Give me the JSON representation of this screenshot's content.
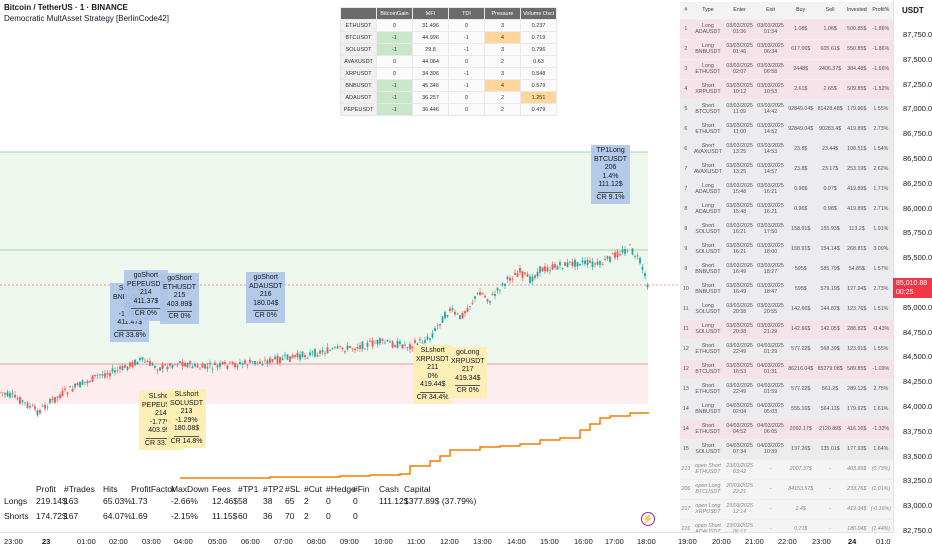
{
  "header": {
    "title": "Bitcoin / TetherUS · 1 · BINANCE",
    "indicator": "Democratic MultAsset Strategy [BerlinCode42]"
  },
  "price_scale": {
    "currency": "USDT",
    "labels": [
      "87,750.00",
      "87,500.00",
      "87,250.00",
      "87,000.00",
      "86,750.00",
      "86,500.00",
      "86,250.00",
      "86,000.00",
      "85,750.00",
      "85,500.00",
      "85,250.00",
      "85,000.00",
      "84,750.00",
      "84,500.00",
      "84,250.00",
      "84,000.00",
      "83,750.00",
      "83,500.00",
      "83,250.00",
      "83,000.00",
      "82,750.00"
    ],
    "current_price": "85,010.88",
    "countdown": "00:25"
  },
  "time_scale": {
    "labels": [
      "23:00",
      "23",
      "01:00",
      "02:00",
      "03:00",
      "04:00",
      "05:00",
      "06:00",
      "07:00",
      "08:00",
      "09:00",
      "10:00",
      "11:00",
      "12:00",
      "13:00",
      "14:00",
      "15:00",
      "16:00",
      "17:00",
      "18:00",
      "19:00",
      "20:00",
      "21:00",
      "22:00",
      "23:00",
      "24",
      "01:0"
    ]
  },
  "signal_table": {
    "headers": [
      "",
      "BitcoinGain",
      "MFI",
      "TDI",
      "Pressure",
      "Volume Osci"
    ],
    "rows": [
      [
        "ETHUSDT",
        "0",
        "31.496",
        "0",
        "3",
        "0.237"
      ],
      [
        "BTCUSDT",
        "-1",
        "44.996",
        "-1",
        "4",
        "0.719"
      ],
      [
        "SOLUSDT",
        "-1",
        "29.8",
        "-1",
        "3",
        "0.796"
      ],
      [
        "AVAXUSDT",
        "0",
        "44.064",
        "0",
        "2",
        "0.63"
      ],
      [
        "XRPUSDT",
        "0",
        "34.306",
        "-1",
        "3",
        "0.548"
      ],
      [
        "BNBUSDT",
        "-1",
        "45.346",
        "-1",
        "4",
        "0.579"
      ],
      [
        "ADAUSDT",
        "-1",
        "36.257",
        "0",
        "2",
        "1.251"
      ],
      [
        "PEPEUSDT",
        "-1",
        "36.446",
        "0",
        "2",
        "0.479"
      ]
    ]
  },
  "trades_table": {
    "headers": [
      "#",
      "Type",
      "Enter",
      "Exit",
      "Buy",
      "Sell",
      "Invested",
      "Profit%"
    ],
    "rows": [
      [
        "1",
        "Long ADAUSDT",
        "03/03/2025 01:36",
        "03/03/2025 01:34",
        "1.08$",
        "1.06$",
        "500.85$",
        "-1.86%"
      ],
      [
        "2",
        "Long BNBUSDT",
        "03/03/2025 01:46",
        "03/03/2025 06:34",
        "617.06$",
        "605.61$",
        "550.85$",
        "-1.86%"
      ],
      [
        "3",
        "Long ETHUSDT",
        "03/03/2025 02:07",
        "03/03/2025 06:58",
        "2448$",
        "2406.37$",
        "384.48$",
        "-1.66%"
      ],
      [
        "4",
        "Short XRPUSDT",
        "03/03/2025 10:12",
        "03/03/2025 10:53",
        "2.61$",
        "2.65$",
        "509.85$",
        "-1.52%"
      ],
      [
        "5",
        "Short BTCUSDT",
        "03/03/2025 11:09",
        "03/03/2025 14:42",
        "92849.04$",
        "81428.48$",
        "179.96$",
        "1.55%"
      ],
      [
        "6",
        "Short ETHUSDT",
        "03/03/2025 11:00",
        "03/03/2025 14:52",
        "92849.04$",
        "90283.4$",
        "419.89$",
        "2.73%"
      ],
      [
        "6",
        "Short AVAXUSDT",
        "03/03/2025 13:25",
        "03/03/2025 14:53",
        "23.8$",
        "23.44$",
        "108.51$",
        "1.54%"
      ],
      [
        "7",
        "Short AVAXUSDT",
        "03/03/2025 13:25",
        "03/03/2025 14:57",
        "23.8$",
        "23.17$",
        "253.19$",
        "2.62%"
      ],
      [
        "7",
        "Long ADAUSDT",
        "03/03/2025 15:48",
        "03/03/2025 16:21",
        "0.96$",
        "0.97$",
        "419.89$",
        "1.71%"
      ],
      [
        "8",
        "Long ADAUSDT",
        "03/03/2025 15:48",
        "03/03/2025 16:21",
        "0.96$",
        "0.98$",
        "419.89$",
        "2.71%"
      ],
      [
        "8",
        "Short SOLUSDT",
        "03/03/2025 16:21",
        "03/03/2025 17:50",
        "158.91$",
        "155.93$",
        "113.2$",
        "1.91%"
      ],
      [
        "9",
        "Short SOLUSDT",
        "03/03/2025 16:21",
        "03/03/2025 18:00",
        "158.91$",
        "154.14$",
        "268.81$",
        "3.09%"
      ],
      [
        "9",
        "Short BNBUSDT",
        "03/03/2025 16:49",
        "03/03/2025 18:27",
        "595$",
        "585.79$",
        "54.85$",
        "1.57%"
      ],
      [
        "10",
        "Short BNBUSDT",
        "03/03/2025 16:49",
        "03/03/2025 18:47",
        "595$",
        "579.19$",
        "127.94$",
        "2.73%"
      ],
      [
        "11",
        "Long SOLUSDT",
        "03/03/2025 20:38",
        "03/03/2025 20:55",
        "142.66$",
        "144.82$",
        "123.76$",
        "1.51%"
      ],
      [
        "11",
        "Long SOLUSDT",
        "03/03/2025 20:38",
        "03/03/2025 21:29",
        "142.66$",
        "142.05$",
        "288.82$",
        "-0.43%"
      ],
      [
        "12",
        "Short ETHUSDT",
        "03/03/2025 22:49",
        "04/03/2025 01:29",
        "577.22$",
        "568.39$",
        "123.91$",
        "1.55%"
      ],
      [
        "12",
        "Short BTCUSDT",
        "03/03/2025 16:53",
        "04/03/2025 01:31",
        "86216.04$",
        "85279.08$",
        "589.85$",
        "-1.09%"
      ],
      [
        "13",
        "Short ETHUSDT",
        "03/03/2025 22:49",
        "04/03/2025 01:59",
        "577.22$",
        "561.2$",
        "289.12$",
        "2.75%"
      ],
      [
        "14",
        "Long BNBUSDT",
        "04/03/2025 02:04",
        "04/03/2025 05:03",
        "555.16$",
        "564.11$",
        "179.92$",
        "1.61%"
      ],
      [
        "14",
        "Short ETHUSDT",
        "04/03/2025 04:52",
        "04/03/2025 06:05",
        "2092.17$",
        "2120.89$",
        "416.16$",
        "-1.33%"
      ],
      [
        "15",
        "Short SOLUSDT",
        "04/03/2025 07:34",
        "04/03/2025 10:39",
        "137.26$",
        "135.01$",
        "177.93$",
        "1.64%"
      ],
      [
        "213",
        "open Short ETHUSDT",
        "23/03/2025 03:42",
        "-",
        "2007.37$",
        "-",
        "403.89$",
        "(0.73%)"
      ],
      [
        "206",
        "open Long BTCUSDT",
        "20/03/2025 22:21",
        "-",
        "84153.57$",
        "-",
        "233.76$",
        "(1.01%)"
      ],
      [
        "217",
        "open Long XRPUSDT",
        "23/03/2025 12:14",
        "-",
        "2.4$",
        "-",
        "419.34$",
        "(-0.16%)"
      ],
      [
        "216",
        "open Short ADAUSDT",
        "23/03/2025 06:17",
        "-",
        "0.71$",
        "-",
        "180.04$",
        "(1.44%)"
      ]
    ]
  },
  "labels": {
    "tp1long": [
      "TP1Long",
      "BTCUSDT",
      "206",
      "1.4%",
      "111.12$",
      "CR 9.1%"
    ],
    "sllong": [
      "SLlong",
      "BNBUSDT",
      "212",
      "-1.79%",
      "411.47$",
      "CR 33.8%"
    ],
    "goshort1": [
      "goShort",
      "PEPEUSDT",
      "214",
      "411.37$",
      "CR 0%"
    ],
    "goshort2": [
      "goShort",
      "ETHUSDT",
      "215",
      "403.89$",
      "CR 0%"
    ],
    "goshort3": [
      "goShort",
      "ADAUSDT",
      "216",
      "180.04$",
      "CR 0%"
    ],
    "slshort1": [
      "SLshort",
      "PEPEUSDT",
      "214",
      "-1.77%",
      "403.99$",
      "CR 33.2%"
    ],
    "slshort2": [
      "SLshort",
      "SOLUSDT",
      "213",
      "-1.29%",
      "180.08$",
      "CR 14.8%"
    ],
    "slshort3": [
      "SLshort",
      "XRPUSDT",
      "211",
      "0%",
      "419.44$",
      "CR 34.4%"
    ],
    "golong": [
      "goLong",
      "XRPUSDT",
      "217",
      "419.34$",
      "CR 0%"
    ]
  },
  "stats": {
    "headers": [
      "Profit",
      "#Trades",
      "Hits",
      "ProfitFactor",
      "MaxDown",
      "Fees",
      "#TP1",
      "#TP2",
      "#SL",
      "#Cut",
      "#Hedge",
      "#Fin",
      "Cash",
      "Capital"
    ],
    "longs": {
      "label": "Longs",
      "values": [
        "219.14$",
        "163",
        "65.03%",
        "1.73",
        "-2.66%",
        "12.46$",
        "58",
        "38",
        "65",
        "2",
        "0",
        "0",
        "111.12$",
        "1377.89$ (37.79%)"
      ]
    },
    "shorts": {
      "label": "Shorts",
      "values": [
        "174.72$",
        "167",
        "64.07%",
        "1.69",
        "-2.15%",
        "11.15$",
        "60",
        "36",
        "70",
        "2",
        "0",
        "0",
        "",
        ""
      ]
    }
  },
  "colors": {
    "up": "#26a69a",
    "down": "#ef5350",
    "equity": "#f57c00",
    "current": "#f23645"
  }
}
